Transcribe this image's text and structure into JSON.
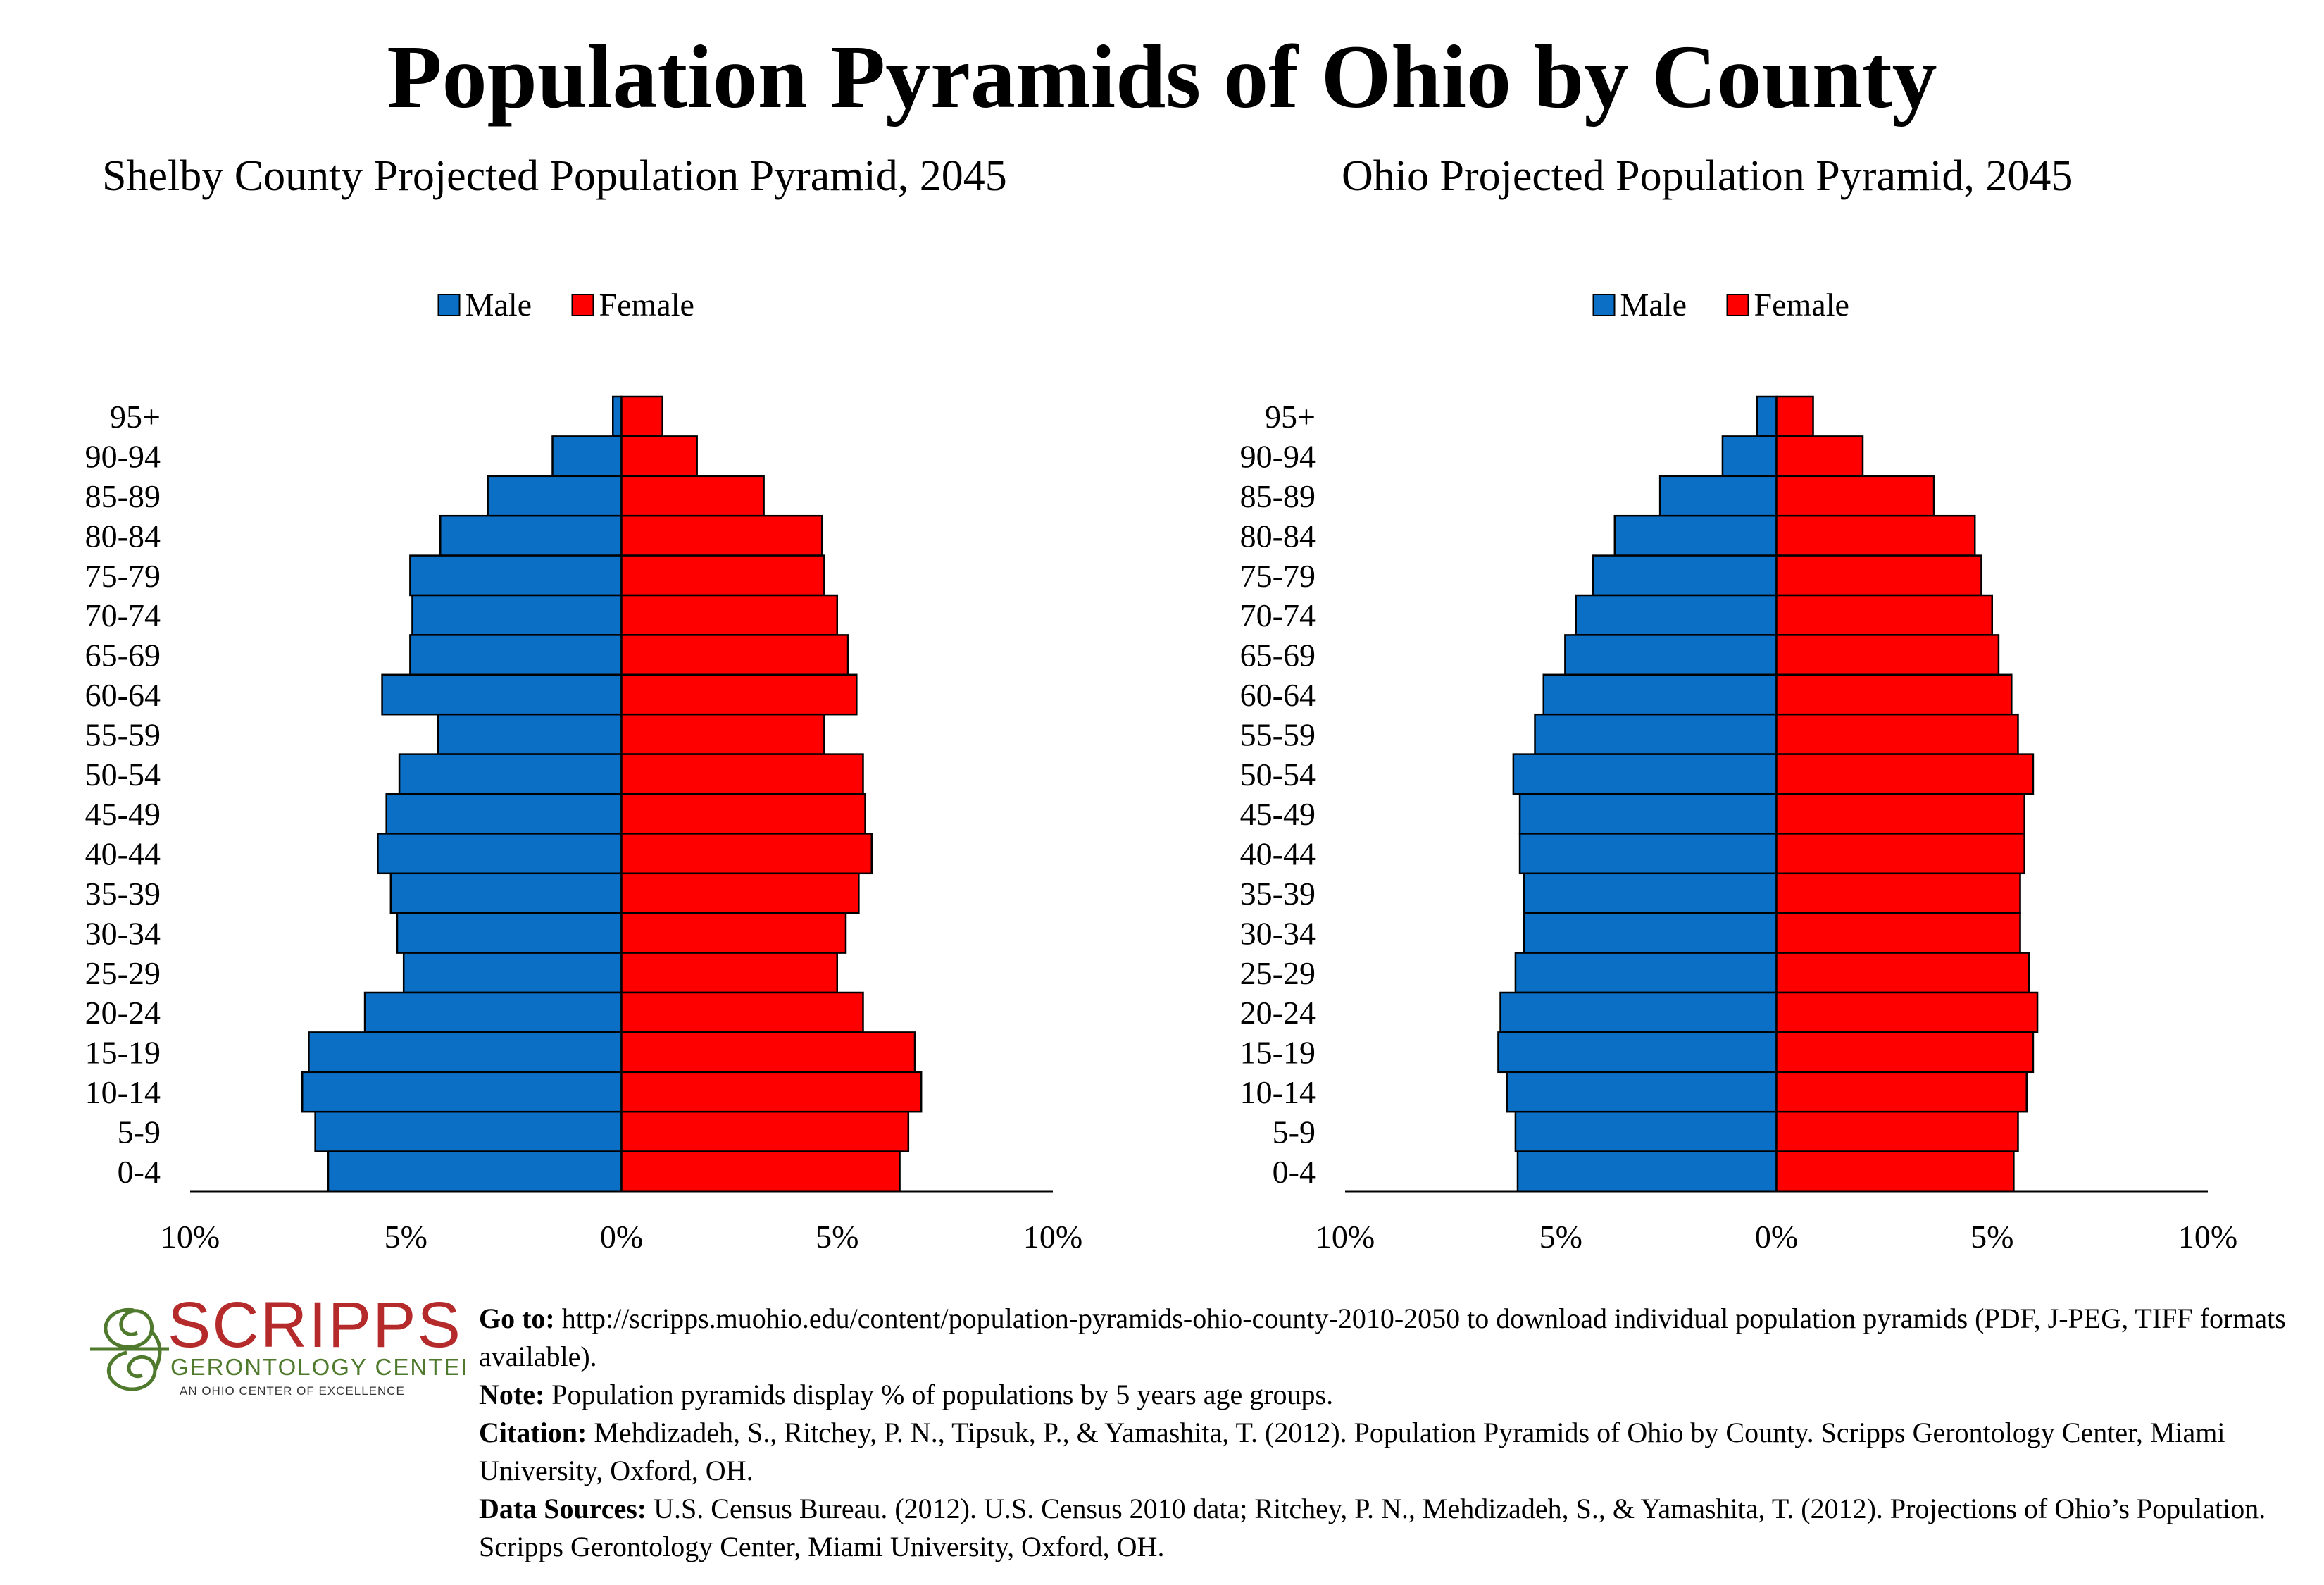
{
  "title": "Population Pyramids of Ohio by County",
  "legend": {
    "male": "Male",
    "female": "Female"
  },
  "colors": {
    "male": "#0b6fc6",
    "female": "#ff0000",
    "logo_red": "#b52a2a",
    "logo_green": "#4f7a2d"
  },
  "chart_data": [
    {
      "type": "bar",
      "title": "Shelby County Projected Population Pyramid, 2045",
      "categories": [
        "95+",
        "90-94",
        "85-89",
        "80-84",
        "75-79",
        "70-74",
        "65-69",
        "60-64",
        "55-59",
        "50-54",
        "45-49",
        "40-44",
        "35-39",
        "30-34",
        "25-29",
        "20-24",
        "15-19",
        "10-14",
        "5-9",
        "0-4"
      ],
      "series": [
        {
          "name": "Male",
          "values": [
            0.2,
            1.6,
            3.1,
            4.2,
            4.9,
            4.85,
            4.9,
            5.55,
            4.25,
            5.15,
            5.45,
            5.65,
            5.35,
            5.2,
            5.05,
            5.95,
            7.25,
            7.4,
            7.1,
            6.8
          ]
        },
        {
          "name": "Female",
          "values": [
            0.95,
            1.75,
            3.3,
            4.65,
            4.7,
            5.0,
            5.25,
            5.45,
            4.7,
            5.6,
            5.65,
            5.8,
            5.5,
            5.2,
            5.0,
            5.6,
            6.8,
            6.95,
            6.65,
            6.45
          ]
        }
      ],
      "xlim": [
        -10,
        10
      ],
      "x_tick_labels": [
        "10%",
        "5%",
        "0%",
        "5%",
        "10%"
      ],
      "legend_position": "top-center"
    },
    {
      "type": "bar",
      "title": "Ohio Projected Population Pyramid, 2045",
      "categories": [
        "95+",
        "90-94",
        "85-89",
        "80-84",
        "75-79",
        "70-74",
        "65-69",
        "60-64",
        "55-59",
        "50-54",
        "45-49",
        "40-44",
        "35-39",
        "30-34",
        "25-29",
        "20-24",
        "15-19",
        "10-14",
        "5-9",
        "0-4"
      ],
      "series": [
        {
          "name": "Male",
          "values": [
            0.45,
            1.25,
            2.7,
            3.75,
            4.25,
            4.65,
            4.9,
            5.4,
            5.6,
            6.1,
            5.95,
            5.95,
            5.85,
            5.85,
            6.05,
            6.4,
            6.45,
            6.25,
            6.05,
            6.0
          ]
        },
        {
          "name": "Female",
          "values": [
            0.85,
            2.0,
            3.65,
            4.6,
            4.75,
            5.0,
            5.15,
            5.45,
            5.6,
            5.95,
            5.75,
            5.75,
            5.65,
            5.65,
            5.85,
            6.05,
            5.95,
            5.8,
            5.6,
            5.5
          ]
        }
      ],
      "xlim": [
        -10,
        10
      ],
      "x_tick_labels": [
        "10%",
        "5%",
        "0%",
        "5%",
        "10%"
      ],
      "legend_position": "top-center"
    }
  ],
  "logo": {
    "name": "SCRIPPS",
    "line1": "GERONTOLOGY CENTER",
    "line2": "AN OHIO CENTER OF EXCELLENCE"
  },
  "footer": {
    "goto_label": "Go to:",
    "goto_text": " http://scripps.muohio.edu/content/population-pyramids-ohio-county-2010-2050 to download individual population pyramids (PDF, J-PEG, TIFF formats available).",
    "note_label": "Note:",
    "note_text": " Population pyramids display % of populations by 5 years age groups.",
    "citation_label": "Citation:",
    "citation_text": " Mehdizadeh, S., Ritchey, P. N., Tipsuk, P., & Yamashita, T. (2012). Population Pyramids of Ohio by County. Scripps Gerontology Center, Miami University, Oxford, OH.",
    "sources_label": "Data Sources:",
    "sources_text": " U.S. Census Bureau. (2012). U.S. Census 2010 data; Ritchey, P. N., Mehdizadeh, S., & Yamashita, T. (2012). Projections of Ohio’s Population. Scripps Gerontology Center, Miami University, Oxford, OH."
  }
}
